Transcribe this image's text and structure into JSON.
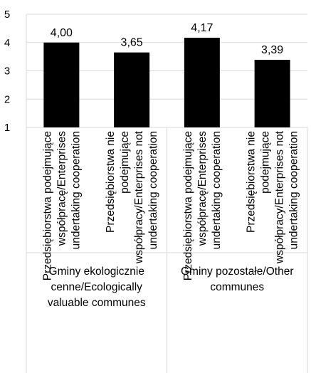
{
  "chart_data": {
    "type": "bar",
    "title": "",
    "xlabel": "",
    "ylabel": "",
    "ylim": [
      1,
      5
    ],
    "yticks": [
      1,
      2,
      3,
      4,
      5
    ],
    "grid": true,
    "legend": "none",
    "bar_color": "#000000",
    "categories": [
      [
        "Przedsiębiorstwa podejmujące",
        "współpracę/Enterprises",
        "undertaking cooperation"
      ],
      [
        "Przedsiębiorstwa nie",
        "podejmujące",
        "współpracy/Enterprises not",
        "undertaking cooperation"
      ],
      [
        "Przedsiębiorstwa podejmujące",
        "współpracę/Enterprises",
        "undertaking cooperation"
      ],
      [
        "Przedsiębiorstwa nie",
        "podejmujące",
        "współpracy/Enterprises not",
        "undertaking cooperation"
      ]
    ],
    "groups": [
      [
        "Gminy ekologicznie",
        "cenne/Ecologically",
        "valuable communes"
      ],
      [
        "Gminy pozostałe/Other",
        "communes"
      ]
    ],
    "values": [
      4.0,
      3.65,
      4.17,
      3.39
    ],
    "data_labels": [
      "4,00",
      "3,65",
      "4,17",
      "3,39"
    ]
  }
}
